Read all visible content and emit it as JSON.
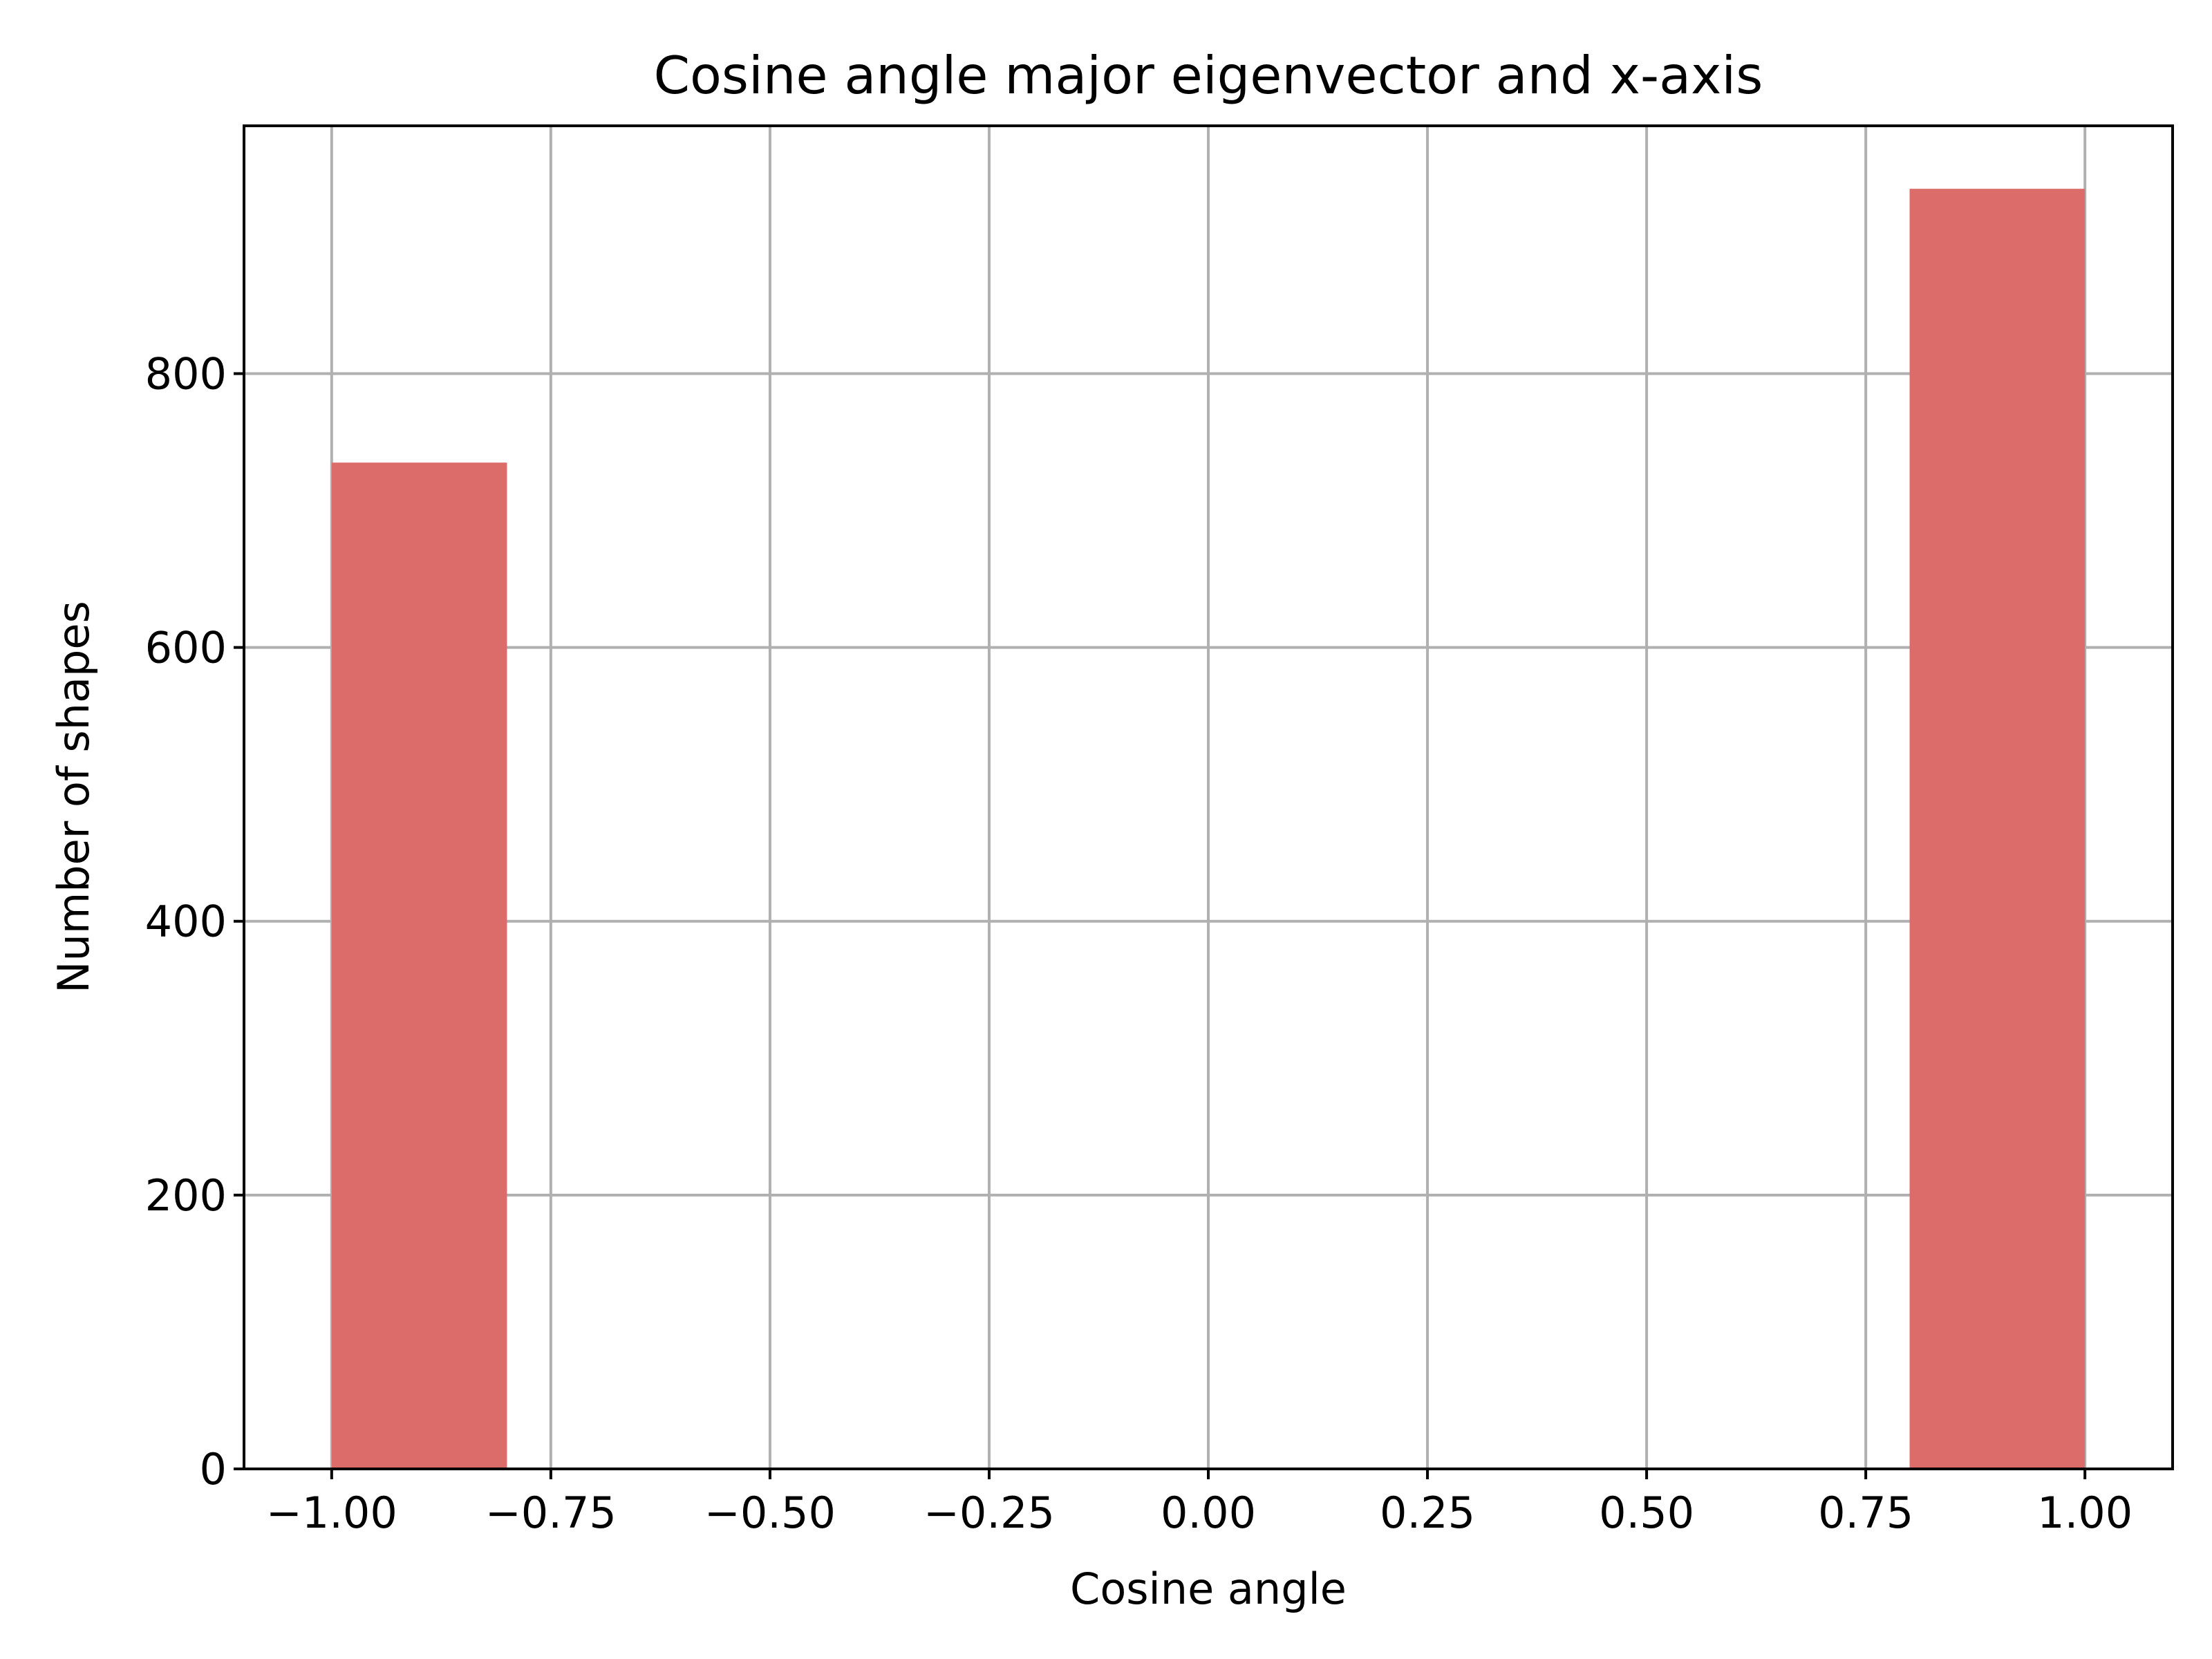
{
  "chart_data": {
    "type": "bar",
    "title": "Cosine angle major eigenvector and x-axis",
    "xlabel": "Cosine angle",
    "ylabel": "Number of shapes",
    "xlim": [
      -1.1,
      1.1
    ],
    "ylim": [
      0,
      981
    ],
    "grid": true,
    "bar_color": "#dc6c6a",
    "bins": [
      {
        "x0": -1.0,
        "x1": -0.8,
        "value": 735
      },
      {
        "x0": -0.8,
        "x1": -0.6,
        "value": 0
      },
      {
        "x0": -0.6,
        "x1": -0.4,
        "value": 0
      },
      {
        "x0": -0.4,
        "x1": -0.2,
        "value": 0
      },
      {
        "x0": -0.2,
        "x1": 0.0,
        "value": 0
      },
      {
        "x0": 0.0,
        "x1": 0.2,
        "value": 0
      },
      {
        "x0": 0.2,
        "x1": 0.4,
        "value": 0
      },
      {
        "x0": 0.4,
        "x1": 0.6,
        "value": 0
      },
      {
        "x0": 0.6,
        "x1": 0.8,
        "value": 0
      },
      {
        "x0": 0.8,
        "x1": 1.0,
        "value": 935
      }
    ],
    "x_ticks": [
      {
        "value": -1.0,
        "label": "−1.00"
      },
      {
        "value": -0.75,
        "label": "−0.75"
      },
      {
        "value": -0.5,
        "label": "−0.50"
      },
      {
        "value": -0.25,
        "label": "−0.25"
      },
      {
        "value": 0.0,
        "label": "0.00"
      },
      {
        "value": 0.25,
        "label": "0.25"
      },
      {
        "value": 0.5,
        "label": "0.50"
      },
      {
        "value": 0.75,
        "label": "0.75"
      },
      {
        "value": 1.0,
        "label": "1.00"
      }
    ],
    "y_ticks": [
      {
        "value": 0,
        "label": "0"
      },
      {
        "value": 200,
        "label": "200"
      },
      {
        "value": 400,
        "label": "400"
      },
      {
        "value": 600,
        "label": "600"
      },
      {
        "value": 800,
        "label": "800"
      }
    ]
  }
}
